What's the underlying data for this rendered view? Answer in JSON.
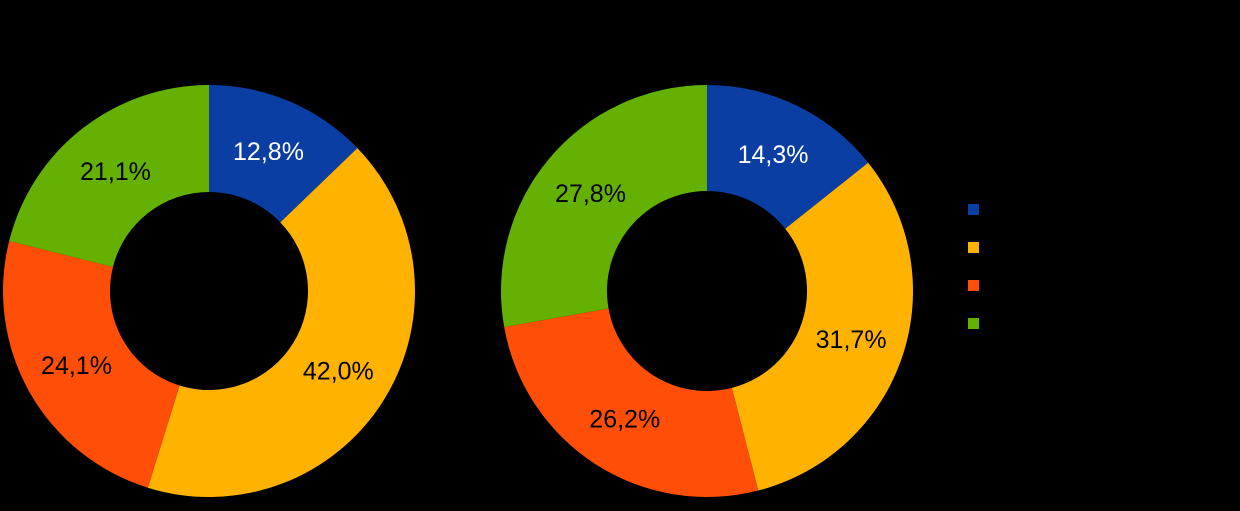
{
  "page": {
    "background": "#000000"
  },
  "palette": {
    "blue": "#0B3EA3",
    "amber": "#FFB300",
    "orange": "#FF4E08",
    "green": "#64B104"
  },
  "chart_data": [
    {
      "type": "pie",
      "subtype": "donut",
      "title": "",
      "labels": [
        "12,8%",
        "42,0%",
        "24,1%",
        "21,1%"
      ],
      "values": [
        12.8,
        42.0,
        24.1,
        21.1
      ],
      "colors": [
        "#0B3EA3",
        "#FFB300",
        "#FF4E08",
        "#64B104"
      ],
      "label_colors": [
        "#FFFFFF",
        "#000000",
        "#000000",
        "#000000"
      ],
      "start_angle_deg": 0,
      "direction": "clockwise",
      "legend_position": "right",
      "grid": false
    },
    {
      "type": "pie",
      "subtype": "donut",
      "title": "",
      "labels": [
        "14,3%",
        "31,7%",
        "26,2%",
        "27,8%"
      ],
      "values": [
        14.3,
        31.7,
        26.2,
        27.8
      ],
      "colors": [
        "#0B3EA3",
        "#FFB300",
        "#FF4E08",
        "#64B104"
      ],
      "label_colors": [
        "#FFFFFF",
        "#000000",
        "#000000",
        "#000000"
      ],
      "start_angle_deg": 0,
      "direction": "clockwise",
      "legend_position": "right",
      "grid": false
    }
  ],
  "legend": {
    "position": "right",
    "swatch_colors": [
      "#0B3EA3",
      "#FFB300",
      "#FF4E08",
      "#64B104"
    ]
  }
}
